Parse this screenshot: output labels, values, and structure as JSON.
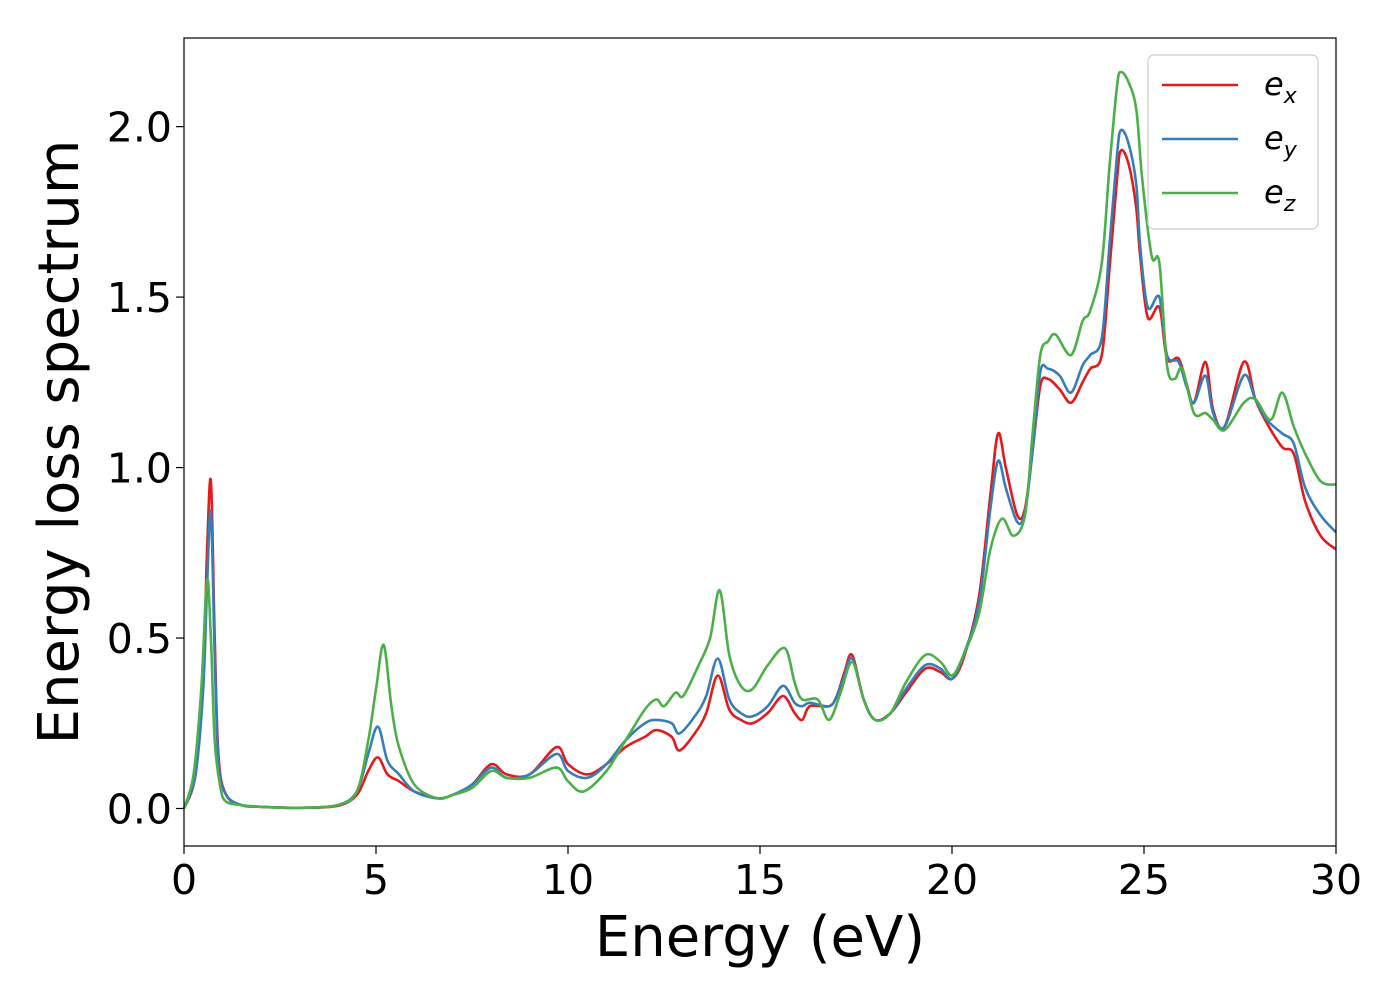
{
  "chart_data": {
    "type": "line",
    "xlabel": "Energy (eV)",
    "ylabel": "Energy loss spectrum",
    "xlim": [
      0,
      30
    ],
    "ylim": [
      -0.11,
      2.26
    ],
    "grid": false,
    "legend_position": "top-right",
    "x_ticks": [
      0,
      5,
      10,
      15,
      20,
      25,
      30
    ],
    "x_tick_labels": [
      "0",
      "5",
      "10",
      "15",
      "20",
      "25",
      "30"
    ],
    "y_ticks": [
      0.0,
      0.5,
      1.0,
      1.5,
      2.0
    ],
    "y_tick_labels": [
      "0.0",
      "0.5",
      "1.0",
      "1.5",
      "2.0"
    ],
    "series": [
      {
        "name": "e",
        "subscript": "x",
        "color": "#e41a1c",
        "points": [
          [
            0,
            0
          ],
          [
            0.3,
            0.1
          ],
          [
            0.5,
            0.4
          ],
          [
            0.6,
            0.75
          ],
          [
            0.7,
            0.96
          ],
          [
            0.8,
            0.5
          ],
          [
            0.9,
            0.15
          ],
          [
            1.1,
            0.04
          ],
          [
            1.5,
            0.01
          ],
          [
            2,
            0.005
          ],
          [
            3,
            0.002
          ],
          [
            4,
            0.008
          ],
          [
            4.5,
            0.04
          ],
          [
            4.8,
            0.11
          ],
          [
            5.05,
            0.15
          ],
          [
            5.3,
            0.1
          ],
          [
            5.6,
            0.08
          ],
          [
            6,
            0.05
          ],
          [
            6.6,
            0.03
          ],
          [
            7,
            0.04
          ],
          [
            7.5,
            0.07
          ],
          [
            8,
            0.13
          ],
          [
            8.4,
            0.1
          ],
          [
            9,
            0.1
          ],
          [
            9.7,
            0.18
          ],
          [
            10,
            0.13
          ],
          [
            10.5,
            0.1
          ],
          [
            11,
            0.13
          ],
          [
            11.5,
            0.18
          ],
          [
            12,
            0.21
          ],
          [
            12.3,
            0.23
          ],
          [
            12.7,
            0.21
          ],
          [
            12.9,
            0.17
          ],
          [
            13.3,
            0.22
          ],
          [
            13.6,
            0.28
          ],
          [
            13.9,
            0.39
          ],
          [
            14.2,
            0.29
          ],
          [
            14.5,
            0.26
          ],
          [
            14.8,
            0.25
          ],
          [
            15.2,
            0.28
          ],
          [
            15.6,
            0.33
          ],
          [
            15.9,
            0.28
          ],
          [
            16.1,
            0.26
          ],
          [
            16.3,
            0.3
          ],
          [
            16.8,
            0.3
          ],
          [
            17,
            0.33
          ],
          [
            17.2,
            0.4
          ],
          [
            17.4,
            0.45
          ],
          [
            17.7,
            0.32
          ],
          [
            18,
            0.26
          ],
          [
            18.4,
            0.28
          ],
          [
            18.8,
            0.34
          ],
          [
            19.3,
            0.41
          ],
          [
            19.7,
            0.4
          ],
          [
            20,
            0.38
          ],
          [
            20.3,
            0.44
          ],
          [
            20.7,
            0.62
          ],
          [
            21,
            0.92
          ],
          [
            21.2,
            1.1
          ],
          [
            21.4,
            1.0
          ],
          [
            21.7,
            0.86
          ],
          [
            21.9,
            0.88
          ],
          [
            22.1,
            1.05
          ],
          [
            22.3,
            1.24
          ],
          [
            22.5,
            1.26
          ],
          [
            22.8,
            1.23
          ],
          [
            23.1,
            1.19
          ],
          [
            23.4,
            1.25
          ],
          [
            23.6,
            1.29
          ],
          [
            23.9,
            1.33
          ],
          [
            24.1,
            1.58
          ],
          [
            24.3,
            1.85
          ],
          [
            24.4,
            1.93
          ],
          [
            24.6,
            1.89
          ],
          [
            24.8,
            1.76
          ],
          [
            24.9,
            1.62
          ],
          [
            25.1,
            1.44
          ],
          [
            25.4,
            1.47
          ],
          [
            25.6,
            1.32
          ],
          [
            25.9,
            1.32
          ],
          [
            26.1,
            1.25
          ],
          [
            26.3,
            1.19
          ],
          [
            26.6,
            1.31
          ],
          [
            26.8,
            1.17
          ],
          [
            27.1,
            1.12
          ],
          [
            27.6,
            1.31
          ],
          [
            27.9,
            1.2
          ],
          [
            28.2,
            1.13
          ],
          [
            28.6,
            1.06
          ],
          [
            28.9,
            1.04
          ],
          [
            29.2,
            0.9
          ],
          [
            29.6,
            0.8
          ],
          [
            30,
            0.76
          ]
        ]
      },
      {
        "name": "e",
        "subscript": "y",
        "color": "#377eb8",
        "points": [
          [
            0,
            0
          ],
          [
            0.3,
            0.1
          ],
          [
            0.5,
            0.35
          ],
          [
            0.6,
            0.65
          ],
          [
            0.7,
            0.87
          ],
          [
            0.8,
            0.45
          ],
          [
            0.9,
            0.13
          ],
          [
            1.1,
            0.04
          ],
          [
            1.5,
            0.01
          ],
          [
            2,
            0.005
          ],
          [
            3,
            0.002
          ],
          [
            4,
            0.01
          ],
          [
            4.5,
            0.05
          ],
          [
            4.8,
            0.16
          ],
          [
            5.05,
            0.24
          ],
          [
            5.3,
            0.14
          ],
          [
            5.6,
            0.1
          ],
          [
            6,
            0.05
          ],
          [
            6.6,
            0.03
          ],
          [
            7,
            0.04
          ],
          [
            7.5,
            0.07
          ],
          [
            8,
            0.12
          ],
          [
            8.4,
            0.09
          ],
          [
            9,
            0.1
          ],
          [
            9.7,
            0.16
          ],
          [
            10,
            0.11
          ],
          [
            10.5,
            0.09
          ],
          [
            11,
            0.13
          ],
          [
            11.5,
            0.2
          ],
          [
            12,
            0.25
          ],
          [
            12.3,
            0.26
          ],
          [
            12.7,
            0.25
          ],
          [
            12.9,
            0.22
          ],
          [
            13.3,
            0.27
          ],
          [
            13.6,
            0.33
          ],
          [
            13.9,
            0.44
          ],
          [
            14.2,
            0.32
          ],
          [
            14.5,
            0.28
          ],
          [
            14.8,
            0.27
          ],
          [
            15.2,
            0.3
          ],
          [
            15.6,
            0.36
          ],
          [
            15.9,
            0.31
          ],
          [
            16.1,
            0.3
          ],
          [
            16.3,
            0.31
          ],
          [
            16.8,
            0.3
          ],
          [
            17,
            0.33
          ],
          [
            17.2,
            0.39
          ],
          [
            17.4,
            0.44
          ],
          [
            17.7,
            0.32
          ],
          [
            18,
            0.26
          ],
          [
            18.4,
            0.28
          ],
          [
            18.8,
            0.35
          ],
          [
            19.3,
            0.42
          ],
          [
            19.7,
            0.41
          ],
          [
            20,
            0.38
          ],
          [
            20.3,
            0.45
          ],
          [
            20.7,
            0.6
          ],
          [
            21,
            0.88
          ],
          [
            21.2,
            1.02
          ],
          [
            21.4,
            0.94
          ],
          [
            21.7,
            0.84
          ],
          [
            21.9,
            0.87
          ],
          [
            22.1,
            1.05
          ],
          [
            22.3,
            1.28
          ],
          [
            22.5,
            1.29
          ],
          [
            22.8,
            1.27
          ],
          [
            23.1,
            1.22
          ],
          [
            23.4,
            1.3
          ],
          [
            23.6,
            1.33
          ],
          [
            23.9,
            1.38
          ],
          [
            24.1,
            1.65
          ],
          [
            24.3,
            1.92
          ],
          [
            24.4,
            1.99
          ],
          [
            24.6,
            1.95
          ],
          [
            24.8,
            1.83
          ],
          [
            24.9,
            1.65
          ],
          [
            25.1,
            1.47
          ],
          [
            25.4,
            1.5
          ],
          [
            25.6,
            1.33
          ],
          [
            25.9,
            1.31
          ],
          [
            26.1,
            1.24
          ],
          [
            26.3,
            1.19
          ],
          [
            26.6,
            1.27
          ],
          [
            26.8,
            1.16
          ],
          [
            27.1,
            1.12
          ],
          [
            27.6,
            1.27
          ],
          [
            27.9,
            1.2
          ],
          [
            28.2,
            1.14
          ],
          [
            28.6,
            1.1
          ],
          [
            28.9,
            1.07
          ],
          [
            29.2,
            0.94
          ],
          [
            29.6,
            0.86
          ],
          [
            30,
            0.81
          ]
        ]
      },
      {
        "name": "e",
        "subscript": "z",
        "color": "#4daf4a",
        "points": [
          [
            0,
            0
          ],
          [
            0.25,
            0.1
          ],
          [
            0.45,
            0.35
          ],
          [
            0.6,
            0.67
          ],
          [
            0.7,
            0.5
          ],
          [
            0.8,
            0.2
          ],
          [
            0.95,
            0.06
          ],
          [
            1.1,
            0.02
          ],
          [
            1.5,
            0.01
          ],
          [
            2,
            0.005
          ],
          [
            3,
            0.002
          ],
          [
            4,
            0.01
          ],
          [
            4.5,
            0.05
          ],
          [
            4.8,
            0.2
          ],
          [
            5.0,
            0.35
          ],
          [
            5.2,
            0.48
          ],
          [
            5.4,
            0.3
          ],
          [
            5.6,
            0.18
          ],
          [
            6,
            0.07
          ],
          [
            6.6,
            0.03
          ],
          [
            7,
            0.04
          ],
          [
            7.5,
            0.06
          ],
          [
            8,
            0.11
          ],
          [
            8.4,
            0.09
          ],
          [
            9,
            0.09
          ],
          [
            9.7,
            0.12
          ],
          [
            10,
            0.08
          ],
          [
            10.4,
            0.05
          ],
          [
            11,
            0.11
          ],
          [
            11.5,
            0.2
          ],
          [
            12,
            0.29
          ],
          [
            12.3,
            0.32
          ],
          [
            12.5,
            0.3
          ],
          [
            12.8,
            0.34
          ],
          [
            13.0,
            0.33
          ],
          [
            13.4,
            0.42
          ],
          [
            13.7,
            0.5
          ],
          [
            13.95,
            0.64
          ],
          [
            14.2,
            0.45
          ],
          [
            14.5,
            0.36
          ],
          [
            14.8,
            0.35
          ],
          [
            15.2,
            0.42
          ],
          [
            15.65,
            0.47
          ],
          [
            15.9,
            0.37
          ],
          [
            16.1,
            0.32
          ],
          [
            16.5,
            0.32
          ],
          [
            16.8,
            0.26
          ],
          [
            17.1,
            0.34
          ],
          [
            17.4,
            0.43
          ],
          [
            17.7,
            0.32
          ],
          [
            18,
            0.26
          ],
          [
            18.4,
            0.28
          ],
          [
            18.8,
            0.37
          ],
          [
            19.3,
            0.45
          ],
          [
            19.7,
            0.43
          ],
          [
            20,
            0.39
          ],
          [
            20.3,
            0.45
          ],
          [
            20.7,
            0.57
          ],
          [
            21,
            0.76
          ],
          [
            21.3,
            0.85
          ],
          [
            21.6,
            0.8
          ],
          [
            21.9,
            0.86
          ],
          [
            22.1,
            1.1
          ],
          [
            22.3,
            1.33
          ],
          [
            22.5,
            1.37
          ],
          [
            22.7,
            1.39
          ],
          [
            23.1,
            1.33
          ],
          [
            23.4,
            1.43
          ],
          [
            23.6,
            1.46
          ],
          [
            23.9,
            1.6
          ],
          [
            24.1,
            1.88
          ],
          [
            24.3,
            2.12
          ],
          [
            24.4,
            2.16
          ],
          [
            24.6,
            2.13
          ],
          [
            24.8,
            2.05
          ],
          [
            24.95,
            1.85
          ],
          [
            25.2,
            1.62
          ],
          [
            25.4,
            1.6
          ],
          [
            25.6,
            1.3
          ],
          [
            25.8,
            1.26
          ],
          [
            26.0,
            1.29
          ],
          [
            26.3,
            1.16
          ],
          [
            26.6,
            1.16
          ],
          [
            26.8,
            1.14
          ],
          [
            27.1,
            1.11
          ],
          [
            27.6,
            1.19
          ],
          [
            27.9,
            1.2
          ],
          [
            28.3,
            1.14
          ],
          [
            28.6,
            1.22
          ],
          [
            28.9,
            1.12
          ],
          [
            29.2,
            1.04
          ],
          [
            29.6,
            0.96
          ],
          [
            30,
            0.95
          ]
        ]
      }
    ]
  }
}
